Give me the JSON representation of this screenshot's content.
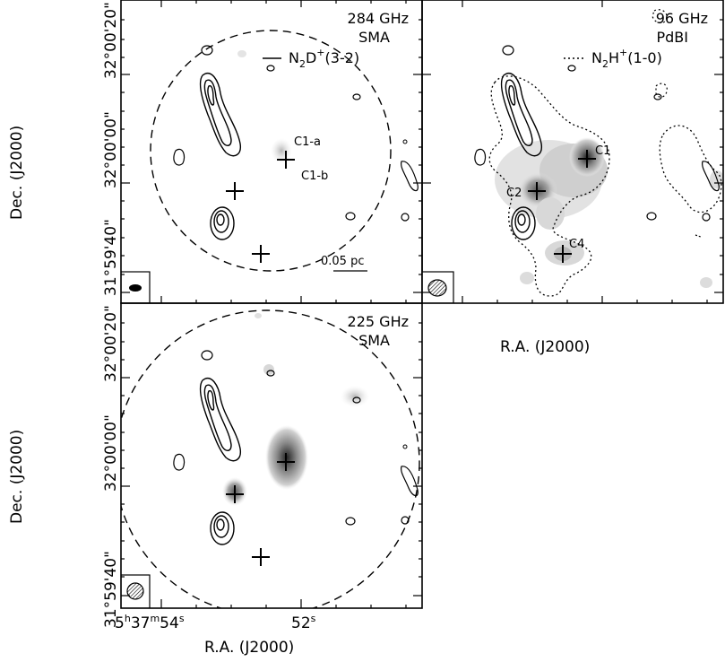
{
  "panels": {
    "top_left": {
      "freq": "284 GHz",
      "instrument": "SMA",
      "line": "N",
      "line_sub": "2",
      "line_mid": "D",
      "line_sup": "+",
      "line_tail": "(3-2)",
      "labels": {
        "c1a": "C1-a",
        "c1b": "C1-b"
      },
      "scale_bar": "0.05 pc"
    },
    "top_right": {
      "freq": "96 GHz",
      "instrument": "PdBI",
      "line": "N",
      "line_sub": "2",
      "line_mid": "H",
      "line_sup": "+",
      "line_tail": "(1-0)",
      "labels": {
        "c1": "C1",
        "c2": "C2",
        "c4": "C4"
      }
    },
    "bottom_left": {
      "freq": "225 GHz",
      "instrument": "SMA"
    }
  },
  "axes": {
    "xlabel": "R.A. (J2000)",
    "ylabel": "Dec. (J2000)",
    "dec_ticks_top": [
      "31°59'40\"",
      "32°00'00\"",
      "32°00'20\""
    ],
    "dec_ticks_bottom": [
      "31°59'40\"",
      "32°00'00\"",
      "32°00'20\""
    ],
    "ra_ticks": {
      "t1_h": "5",
      "t1_hs": "h",
      "t1_m": "37",
      "t1_ms": "m",
      "t1_s": "54",
      "t1_ss": "s",
      "t2_s": "52",
      "t2_ss": "s"
    }
  }
}
